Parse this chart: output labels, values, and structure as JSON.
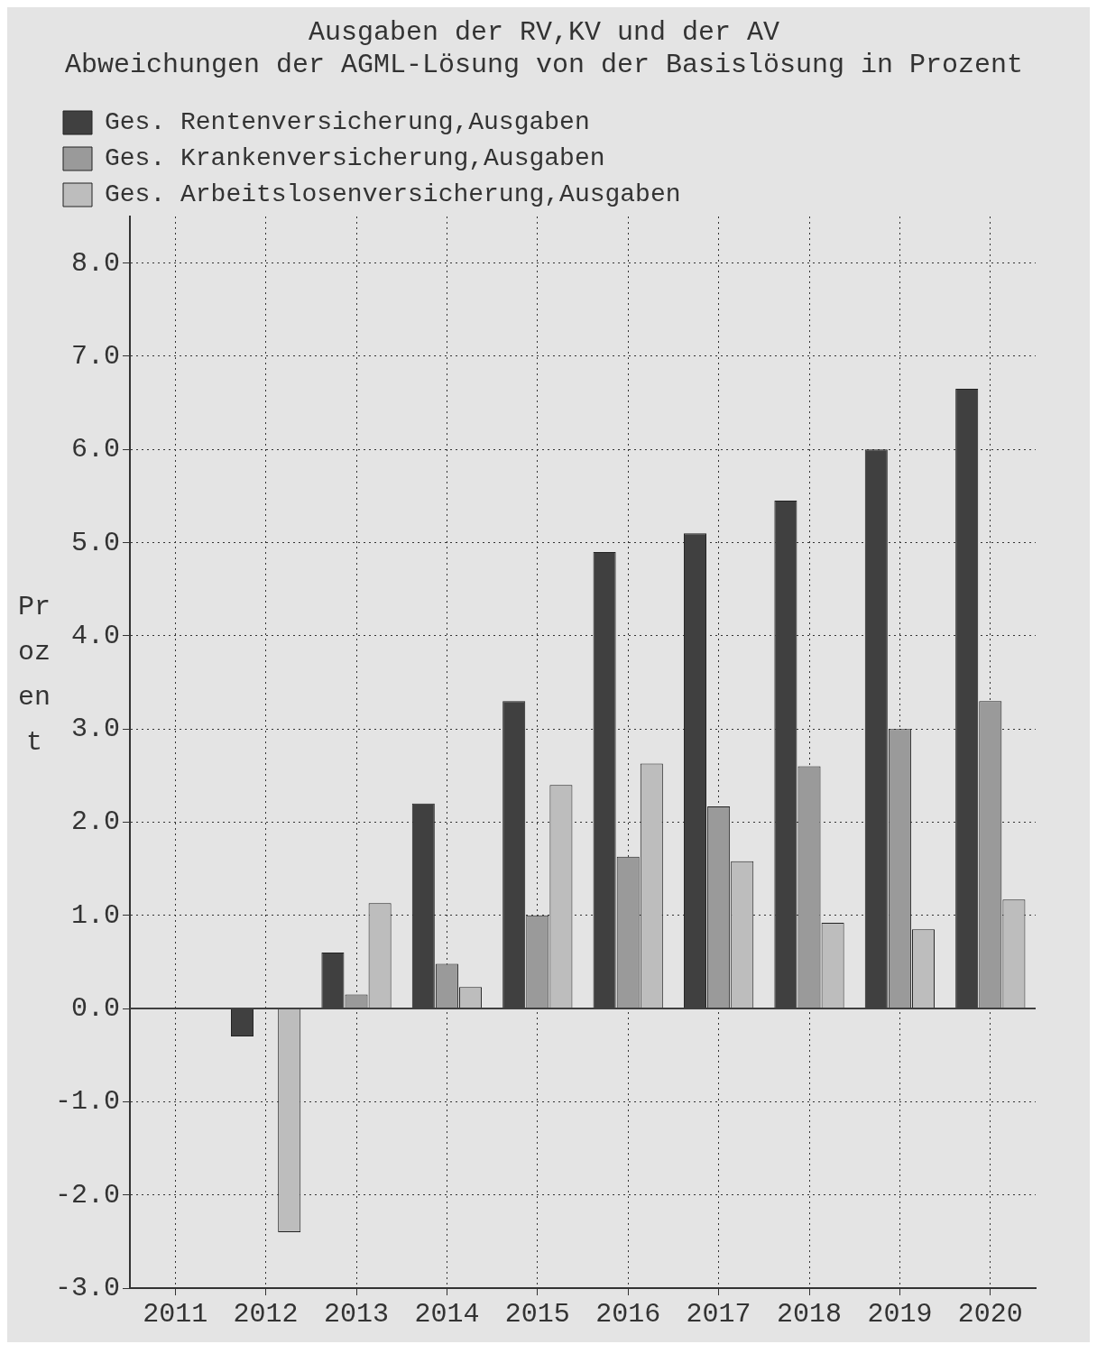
{
  "chart_data": {
    "type": "bar",
    "title": [
      "Ausgaben der RV,KV und der AV",
      "Abweichungen der AGML-Lösung von der Basislösung in Prozent"
    ],
    "ylabel": "Prozent",
    "categories": [
      "2011",
      "2012",
      "2013",
      "2014",
      "2015",
      "2016",
      "2017",
      "2018",
      "2019",
      "2020"
    ],
    "series": [
      {
        "name": "Ges. Rentenversicherung,Ausgaben",
        "color": "#404040",
        "values": [
          0,
          -0.3,
          0.6,
          2.2,
          3.3,
          4.9,
          5.1,
          5.45,
          6.0,
          6.65
        ]
      },
      {
        "name": "Ges. Krankenversicherung,Ausgaben",
        "color": "#9a9a9a",
        "values": [
          0,
          0,
          0.15,
          0.48,
          1.0,
          1.63,
          2.17,
          2.6,
          3.0,
          3.3
        ]
      },
      {
        "name": "Ges. Arbeitslosenversicherung,Ausgaben",
        "color": "#bdbdbd",
        "values": [
          0,
          -2.4,
          1.13,
          0.23,
          2.4,
          2.63,
          1.58,
          0.92,
          0.85,
          1.17
        ]
      }
    ],
    "ylim": [
      -3,
      8.5
    ],
    "yticks": [
      {
        "value": -3,
        "label": "-3.0"
      },
      {
        "value": -2,
        "label": "-2.0"
      },
      {
        "value": -1,
        "label": "-1.0"
      },
      {
        "value": 0,
        "label": "0.0"
      },
      {
        "value": 1,
        "label": "1.0"
      },
      {
        "value": 2,
        "label": "2.0"
      },
      {
        "value": 3,
        "label": "3.0"
      },
      {
        "value": 4,
        "label": "4.0"
      },
      {
        "value": 5,
        "label": "5.0"
      },
      {
        "value": 6,
        "label": "6.0"
      },
      {
        "value": 7,
        "label": "7.0"
      },
      {
        "value": 8,
        "label": "8.0"
      }
    ],
    "ref_lines": [
      {
        "axis": "y",
        "value": 0,
        "color": "#404040",
        "line_style": "solid"
      }
    ],
    "grid": true,
    "legend": "top left"
  }
}
